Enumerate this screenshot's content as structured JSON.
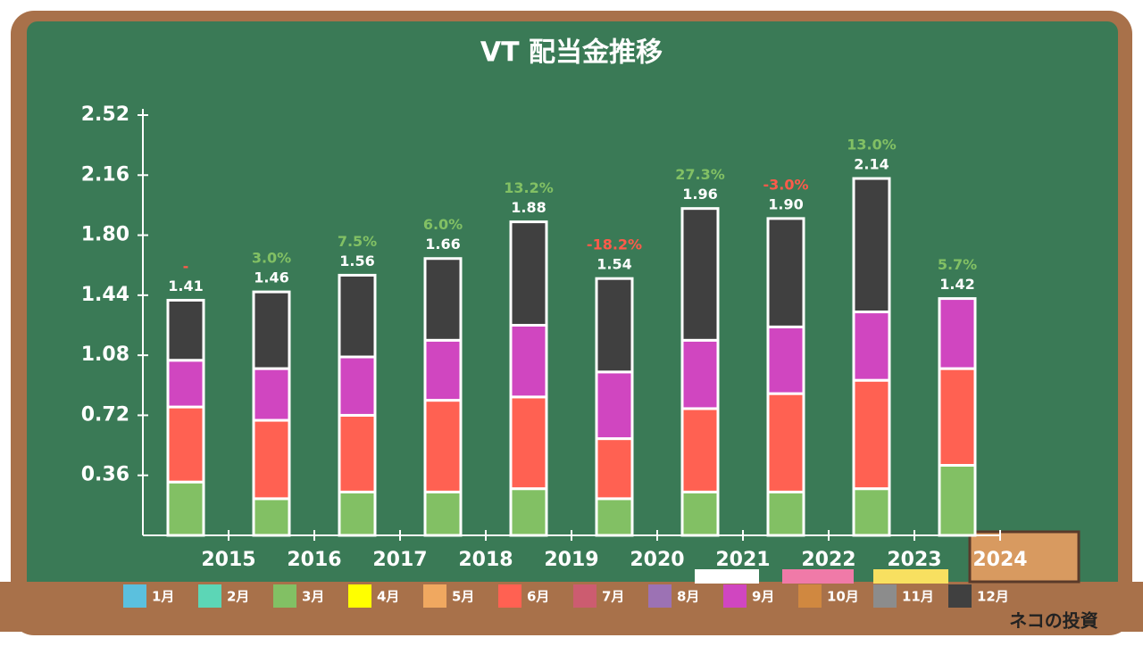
{
  "chart_data": {
    "type": "stacked_bar",
    "title": "VT 配当金推移",
    "categories": [
      "2015",
      "2016",
      "2017",
      "2018",
      "2019",
      "2020",
      "2021",
      "2022",
      "2023",
      "2024"
    ],
    "series": [
      {
        "name": "1月",
        "color": "#5bc0de",
        "values": [
          null,
          null,
          null,
          null,
          null,
          null,
          null,
          null,
          null,
          null
        ]
      },
      {
        "name": "2月",
        "color": "#5cd6b6",
        "values": [
          null,
          null,
          null,
          null,
          null,
          null,
          null,
          null,
          null,
          null
        ]
      },
      {
        "name": "3月",
        "color": "#82c064",
        "values": [
          0.32,
          0.22,
          0.26,
          0.26,
          0.28,
          0.22,
          0.26,
          0.26,
          0.28,
          0.42
        ]
      },
      {
        "name": "4月",
        "color": "#ffff00",
        "values": [
          null,
          null,
          null,
          null,
          null,
          null,
          null,
          null,
          null,
          null
        ]
      },
      {
        "name": "5月",
        "color": "#f0a860",
        "values": [
          null,
          null,
          null,
          null,
          null,
          null,
          null,
          null,
          null,
          null
        ]
      },
      {
        "name": "6月",
        "color": "#ff6152",
        "values": [
          0.45,
          0.47,
          0.46,
          0.55,
          0.55,
          0.36,
          0.5,
          0.59,
          0.65,
          0.58
        ]
      },
      {
        "name": "7月",
        "color": "#cc5c70",
        "values": [
          null,
          null,
          null,
          null,
          null,
          null,
          null,
          null,
          null,
          null
        ]
      },
      {
        "name": "8月",
        "color": "#9c72b4",
        "values": [
          null,
          null,
          null,
          null,
          null,
          null,
          null,
          null,
          null,
          null
        ]
      },
      {
        "name": "9月",
        "color": "#d046c0",
        "values": [
          0.28,
          0.31,
          0.35,
          0.36,
          0.43,
          0.4,
          0.41,
          0.4,
          0.41,
          0.42
        ]
      },
      {
        "name": "10月",
        "color": "#d08840",
        "values": [
          null,
          null,
          null,
          null,
          null,
          null,
          null,
          null,
          null,
          null
        ]
      },
      {
        "name": "11月",
        "color": "#8c8c8c",
        "values": [
          null,
          null,
          null,
          null,
          null,
          null,
          null,
          null,
          null,
          null
        ]
      },
      {
        "name": "12月",
        "color": "#404040",
        "values": [
          0.36,
          0.46,
          0.49,
          0.49,
          0.62,
          0.56,
          0.79,
          0.65,
          0.8,
          null
        ]
      }
    ],
    "totals": [
      1.41,
      1.46,
      1.56,
      1.66,
      1.88,
      1.54,
      1.96,
      1.9,
      2.14,
      1.42
    ],
    "total_labels": [
      "1.41",
      "1.46",
      "1.56",
      "1.66",
      "1.88",
      "1.54",
      "1.96",
      "1.90",
      "2.14",
      "1.42"
    ],
    "growth_labels": [
      "-",
      "3.0%",
      "7.5%",
      "6.0%",
      "13.2%",
      "-18.2%",
      "27.3%",
      "-3.0%",
      "13.0%",
      "5.7%"
    ],
    "growth_label_colors": [
      "#ff5a4a",
      "#82c064",
      "#82c064",
      "#82c064",
      "#82c064",
      "#ff5a4a",
      "#82c064",
      "#ff5a4a",
      "#82c064",
      "#82c064"
    ],
    "ylim": [
      0,
      2.52
    ],
    "yticks": [
      0.36,
      0.72,
      1.08,
      1.44,
      {
        "value": 1.8,
        "label": "1.80"
      },
      2.16,
      2.52
    ]
  },
  "brand": "ネコの投資"
}
